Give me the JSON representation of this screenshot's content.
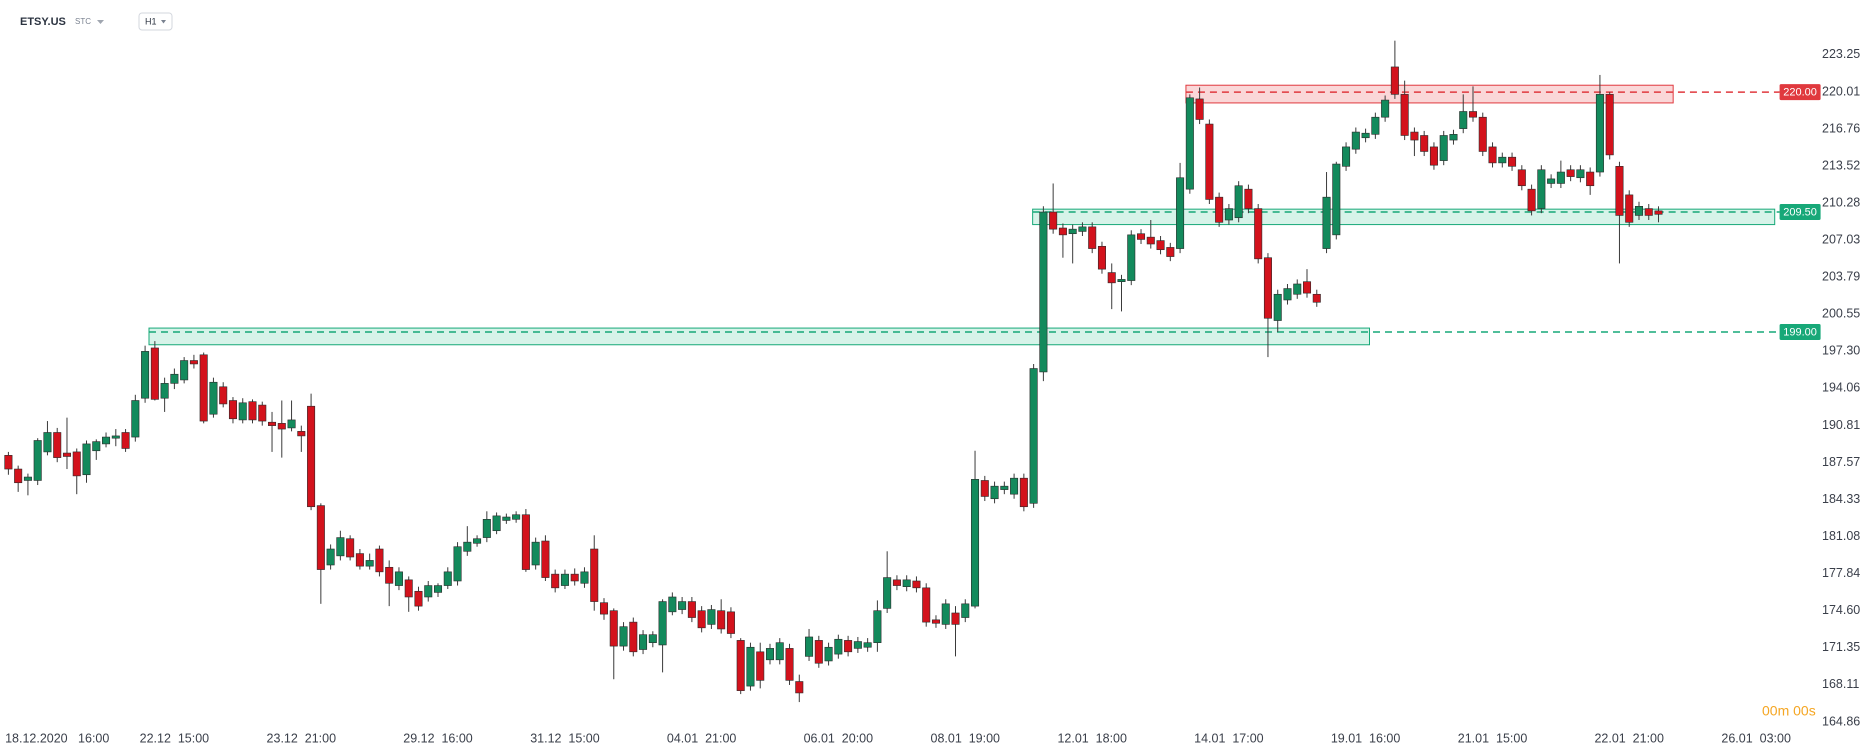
{
  "header": {
    "symbol": "ETSY.US",
    "tag": "STC",
    "interval": "H1",
    "timer": "00m 00s"
  },
  "chart_data": {
    "type": "candlestick",
    "up_color": "#138a5c",
    "down_color": "#d3121c",
    "xlim": [
      -0.86,
      190.25
    ],
    "xticks": [
      {
        "value": 5,
        "label": "18.12.2020   16:00"
      },
      {
        "value": 17,
        "label": "22.12  15:00"
      },
      {
        "value": 30,
        "label": "23.12  21:00"
      },
      {
        "value": 44,
        "label": "29.12  16:00"
      },
      {
        "value": 57,
        "label": "31.12  15:00"
      },
      {
        "value": 71,
        "label": "04.01  21:00"
      },
      {
        "value": 85,
        "label": "06.01  20:00"
      },
      {
        "value": 98,
        "label": "08.01  19:00"
      },
      {
        "value": 111,
        "label": "12.01  18:00"
      },
      {
        "value": 125,
        "label": "14.01  17:00"
      },
      {
        "value": 139,
        "label": "19.01  16:00"
      },
      {
        "value": 152,
        "label": "21.01  15:00"
      },
      {
        "value": 166,
        "label": "22.01  21:00"
      },
      {
        "value": 179,
        "label": "26.01  03:00"
      }
    ],
    "ylim": [
      162.58,
      228.06
    ],
    "yticks": [
      223.25,
      220.01,
      216.76,
      213.52,
      210.28,
      207.03,
      203.79,
      200.55,
      {
        "value": 197.3,
        "label": "197.30"
      },
      194.06,
      190.81,
      187.57,
      184.33,
      181.08,
      177.84,
      {
        "value": 174.6,
        "label": "174.60"
      },
      171.35,
      168.11,
      164.86
    ],
    "levels": [
      {
        "value": 220,
        "label": "220.00",
        "color": "#e0393e",
        "fill": "#f8c9cb",
        "zone": [
          219.05,
          220.6
        ],
        "x": [
          120.6,
          170.5,
          181.4
        ]
      },
      {
        "value": 209.5,
        "label": "209.50",
        "color": "#17a878",
        "fill": "#c9efe2",
        "zone": [
          208.4,
          209.75
        ],
        "x": [
          104.9,
          180.9,
          181.4
        ]
      },
      {
        "value": 199,
        "label": "199.00",
        "color": "#17a878",
        "fill": "#c9efe2",
        "zone": [
          197.88,
          199.34
        ],
        "x": [
          14.4,
          139.4,
          181.4
        ]
      }
    ],
    "open": [
      188.2,
      187.0,
      186.0,
      186.0,
      188.5,
      190.2,
      188.4,
      188.5,
      186.5,
      188.6,
      189.2,
      189.7,
      190.2,
      189.8,
      193.2,
      197.6,
      193.2,
      194.5,
      194.8,
      196.5,
      197.0,
      191.8,
      194.2,
      193.0,
      191.3,
      192.9,
      192.6,
      191.1,
      191.0,
      190.6,
      190.3,
      192.5,
      183.8,
      178.6,
      179.4,
      180.9,
      179.6,
      178.5,
      180.0,
      178.4,
      176.8,
      177.3,
      176.3,
      175.8,
      176.2,
      176.8,
      177.2,
      179.8,
      180.5,
      181.0,
      181.6,
      182.5,
      182.6,
      183.0,
      178.6,
      180.7,
      177.8,
      176.8,
      177.8,
      177.0,
      180.0,
      175.3,
      174.6,
      171.5,
      173.6,
      171.2,
      171.8,
      171.6,
      174.5,
      174.7,
      175.4,
      174.6,
      173.4,
      174.6,
      174.5,
      172.0,
      168.0,
      171.0,
      170.3,
      170.3,
      171.3,
      168.4,
      170.6,
      172.0,
      170.2,
      170.8,
      172.0,
      171.3,
      171.4,
      171.8,
      174.8,
      177.3,
      176.7,
      177.2,
      176.6,
      173.8,
      173.4,
      174.4,
      174.0,
      175.0,
      186.0,
      184.4,
      185.2,
      184.8,
      186.2,
      184.0,
      195.5,
      209.5,
      208.1,
      207.6,
      207.8,
      208.2,
      206.5,
      204.2,
      203.4,
      203.5,
      207.6,
      207.3,
      207.0,
      206.4,
      206.3,
      211.5,
      219.4,
      217.2,
      210.8,
      208.8,
      209.0,
      211.5,
      209.8,
      205.5,
      200.0,
      201.8,
      202.3,
      203.4,
      202.3,
      206.3,
      207.5,
      213.5,
      215.0,
      216.0,
      216.3,
      217.8,
      222.2,
      219.8,
      216.5,
      216.2,
      215.2,
      214.0,
      215.8,
      216.8,
      218.3,
      217.8,
      215.2,
      213.8,
      214.3,
      213.2,
      211.5,
      209.8,
      212.0,
      212.0,
      213.2,
      212.5,
      213.0,
      213.0,
      219.8,
      213.5,
      211.0,
      209.2,
      209.8,
      209.6
    ],
    "high": [
      188.5,
      187.3,
      186.6,
      189.7,
      191.2,
      190.6,
      191.5,
      188.8,
      189.5,
      189.6,
      190.2,
      190.5,
      190.5,
      193.5,
      197.8,
      198.2,
      195.0,
      195.8,
      196.8,
      197.0,
      197.2,
      195.0,
      194.6,
      193.3,
      193.2,
      193.1,
      192.9,
      192.0,
      193.0,
      193.0,
      190.8,
      193.6,
      184.0,
      180.4,
      181.6,
      181.2,
      180.0,
      179.6,
      180.3,
      179.0,
      178.4,
      177.6,
      176.7,
      177.2,
      177.0,
      178.4,
      180.6,
      182.0,
      181.2,
      183.3,
      183.2,
      183.1,
      183.3,
      183.5,
      181.0,
      181.2,
      178.2,
      178.2,
      178.3,
      178.4,
      181.2,
      175.7,
      174.8,
      173.6,
      174.0,
      172.9,
      172.8,
      175.6,
      176.2,
      175.8,
      175.8,
      175.0,
      175.1,
      175.6,
      174.9,
      172.2,
      171.8,
      171.8,
      171.7,
      172.2,
      171.7,
      169.0,
      173.0,
      172.4,
      171.8,
      172.5,
      172.4,
      172.3,
      172.2,
      175.5,
      179.8,
      177.7,
      177.7,
      177.6,
      177.0,
      174.2,
      175.6,
      175.0,
      175.6,
      188.6,
      186.4,
      185.9,
      185.9,
      186.6,
      186.6,
      196.2,
      210.0,
      212.0,
      208.5,
      208.4,
      208.6,
      208.6,
      206.9,
      205.0,
      204.0,
      207.9,
      208.0,
      208.8,
      207.4,
      206.8,
      213.8,
      219.8,
      220.4,
      217.6,
      211.2,
      210.2,
      212.2,
      211.9,
      210.2,
      205.9,
      202.7,
      203.2,
      203.6,
      204.5,
      202.7,
      213.0,
      213.9,
      215.6,
      216.9,
      216.8,
      218.2,
      219.7,
      224.5,
      221.0,
      216.9,
      216.6,
      215.6,
      216.6,
      216.7,
      219.8,
      220.5,
      218.2,
      215.6,
      214.7,
      214.7,
      213.6,
      211.9,
      213.6,
      212.8,
      214.0,
      213.6,
      213.6,
      213.4,
      221.5,
      220.0,
      213.9,
      211.4,
      210.4,
      210.2,
      210.0
    ],
    "low": [
      186.5,
      185.0,
      184.7,
      185.6,
      188.2,
      187.6,
      187.0,
      184.8,
      185.8,
      187.8,
      188.9,
      189.0,
      188.5,
      189.4,
      192.8,
      193.0,
      192.0,
      194.0,
      194.5,
      195.8,
      191.0,
      191.5,
      192.4,
      191.0,
      191.0,
      191.0,
      190.8,
      188.5,
      188.0,
      190.3,
      188.5,
      183.4,
      175.2,
      178.2,
      179.0,
      179.0,
      178.2,
      178.2,
      177.6,
      175.0,
      176.4,
      174.5,
      174.6,
      175.4,
      175.8,
      176.5,
      176.8,
      179.4,
      180.2,
      180.6,
      181.3,
      182.2,
      182.3,
      178.0,
      178.2,
      177.2,
      176.2,
      176.5,
      176.8,
      176.6,
      174.6,
      173.8,
      168.6,
      171.1,
      170.6,
      170.8,
      171.4,
      169.2,
      174.2,
      174.3,
      173.6,
      172.7,
      173.0,
      172.6,
      172.2,
      167.3,
      167.6,
      167.8,
      169.9,
      169.9,
      168.1,
      166.6,
      170.2,
      169.6,
      169.8,
      170.4,
      170.6,
      170.9,
      171.0,
      171.0,
      174.4,
      176.4,
      176.3,
      176.2,
      173.2,
      173.1,
      173.0,
      170.6,
      173.6,
      174.8,
      184.2,
      184.0,
      184.8,
      184.4,
      183.3,
      183.6,
      194.7,
      207.6,
      205.5,
      205.0,
      207.4,
      205.9,
      204.1,
      201.0,
      200.8,
      203.1,
      206.7,
      206.3,
      205.8,
      205.2,
      205.9,
      211.1,
      217.2,
      210.2,
      208.2,
      208.4,
      208.6,
      209.4,
      205.0,
      196.8,
      199.0,
      201.4,
      201.9,
      202.0,
      201.2,
      205.9,
      207.1,
      213.1,
      214.6,
      215.6,
      215.9,
      217.4,
      219.4,
      215.8,
      214.4,
      214.4,
      213.2,
      213.6,
      215.4,
      216.4,
      217.4,
      214.4,
      213.4,
      213.4,
      213.1,
      211.4,
      209.2,
      209.4,
      211.6,
      211.6,
      212.2,
      212.1,
      211.0,
      212.6,
      214.1,
      205.0,
      208.2,
      208.8,
      208.8,
      208.6
    ],
    "close": [
      187.0,
      185.8,
      186.3,
      189.5,
      190.2,
      188.0,
      188.1,
      186.4,
      189.2,
      189.4,
      189.8,
      189.9,
      188.8,
      193.0,
      197.3,
      193.1,
      194.5,
      195.3,
      196.5,
      196.2,
      191.2,
      194.6,
      192.7,
      191.4,
      192.8,
      191.3,
      191.2,
      190.8,
      190.5,
      191.3,
      189.9,
      183.7,
      178.2,
      180.0,
      181.0,
      179.3,
      178.5,
      179.0,
      178.0,
      177.0,
      178.0,
      175.8,
      175.0,
      176.8,
      176.8,
      178.0,
      180.2,
      180.6,
      180.9,
      182.6,
      182.9,
      182.8,
      183.0,
      178.2,
      180.6,
      177.5,
      176.6,
      177.8,
      177.2,
      178.0,
      175.4,
      174.3,
      171.5,
      173.2,
      171.0,
      172.5,
      172.5,
      175.4,
      175.8,
      175.4,
      174.0,
      173.1,
      174.7,
      173.0,
      172.6,
      167.6,
      171.4,
      168.5,
      171.3,
      171.8,
      168.5,
      167.4,
      172.3,
      170.0,
      171.4,
      172.1,
      171.0,
      171.9,
      171.8,
      174.6,
      177.5,
      176.8,
      177.3,
      176.6,
      173.6,
      173.5,
      175.2,
      173.4,
      175.2,
      186.1,
      184.6,
      185.5,
      185.5,
      186.2,
      183.7,
      195.8,
      209.5,
      208.0,
      207.5,
      208.0,
      208.2,
      206.3,
      204.5,
      203.3,
      203.6,
      207.5,
      207.1,
      206.7,
      206.2,
      205.6,
      212.5,
      219.5,
      217.6,
      210.6,
      208.6,
      209.8,
      211.8,
      209.8,
      205.4,
      200.2,
      202.3,
      202.8,
      203.2,
      202.4,
      201.6,
      210.8,
      213.7,
      215.2,
      216.5,
      216.4,
      217.8,
      219.3,
      219.8,
      216.2,
      215.8,
      214.8,
      213.6,
      216.2,
      216.3,
      218.3,
      217.8,
      214.8,
      213.8,
      214.3,
      213.5,
      211.8,
      209.6,
      213.2,
      212.4,
      213.0,
      212.6,
      213.2,
      211.8,
      219.8,
      214.5,
      209.2,
      208.6,
      210.0,
      209.2,
      209.3
    ]
  }
}
